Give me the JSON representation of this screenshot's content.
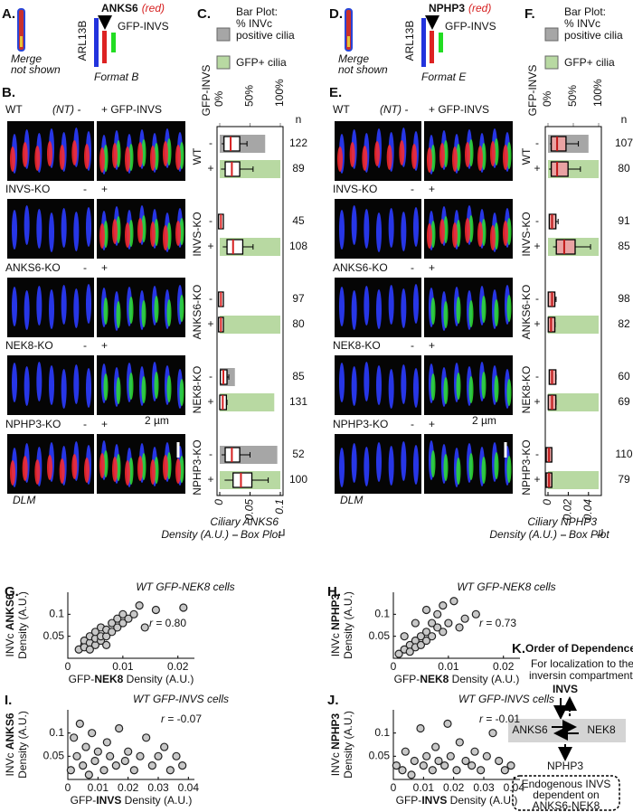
{
  "figure": {
    "A": {
      "label": "A.",
      "merge": "Merge",
      "not_shown": "not shown",
      "arl": "ARL13B",
      "protein": "ANKS6",
      "protein_note": "(red)",
      "gfp": "GFP-INVS",
      "format": "Format B"
    },
    "B": {
      "label": "B.",
      "rows": [
        "WT",
        "INVS-KO",
        "ANKS6-KO",
        "NEK8-KO",
        "NPHP3-KO"
      ],
      "header_minus": "(NT) -",
      "header_plus": "+ GFP-INVS",
      "minus": "-",
      "plus": "+",
      "scale": "2 µm",
      "method": "DLM"
    },
    "D": {
      "label": "D.",
      "merge": "Merge",
      "not_shown": "not shown",
      "arl": "ARL13B",
      "protein": "NPHP3",
      "protein_note": "(red)",
      "gfp": "GFP-INVS",
      "format": "Format E"
    },
    "E": {
      "label": "E.",
      "rows": [
        "WT",
        "INVS-KO",
        "ANKS6-KO",
        "NEK8-KO",
        "NPHP3-KO"
      ],
      "header_minus": "(NT) -",
      "header_plus": "+ GFP-INVS",
      "minus": "-",
      "plus": "+",
      "scale": "2 µm",
      "method": "DLM"
    },
    "K": {
      "label": "K.",
      "title": "Order of Dependence:",
      "subtitle": [
        "For localization to the",
        "inversin compartment."
      ],
      "top": "INVS",
      "left": "ANKS6",
      "right": "NEK8",
      "bottom": "NPHP3",
      "note": [
        "Endogenous INVS",
        "dependent on",
        "ANKS6-NEK8"
      ]
    }
  },
  "chart_data": [
    {
      "type": "box-bar",
      "panel_label": "C.",
      "legend": {
        "invc_label": [
          "Bar Plot:",
          "% INVc",
          "positive cilia"
        ],
        "invc_color": "#a6a6a6",
        "gfp_label": "GFP+ cilia",
        "gfp_color": "#b8d9a2"
      },
      "row_axis_label": "GFP-INVS",
      "n_header": "n",
      "toplim": [
        0,
        100
      ],
      "top_ticks": [
        {
          "value": 0,
          "label": "0%"
        },
        {
          "value": 50,
          "label": "50%"
        },
        {
          "value": 100,
          "label": "100%"
        }
      ],
      "xlim": [
        0,
        0.1
      ],
      "xticks": [
        0,
        0.05,
        0.1
      ],
      "xlabel": [
        "Ciliary ANKS6",
        "Density (A.U.)"
      ],
      "box_label": "Box Plot",
      "box_fill": "#ffffff",
      "median_color": "#d62020",
      "groups": [
        "WT",
        "INVS-KO",
        "ANKS6-KO",
        "NEK8-KO",
        "NPHP3-KO"
      ],
      "rows": [
        {
          "sign": "-",
          "kind": "invc",
          "bar": 75,
          "box": [
            0.003,
            0.01,
            0.018,
            0.03,
            0.045
          ],
          "n": 122
        },
        {
          "sign": "+",
          "kind": "gfp",
          "bar": 100,
          "box": [
            0.002,
            0.012,
            0.02,
            0.03,
            0.055
          ],
          "n": 89
        },
        {
          "sign": "-",
          "kind": "invc",
          "bar": 0,
          "box": [
            0,
            0.001,
            0.002,
            0.003,
            0.005
          ],
          "n": 45
        },
        {
          "sign": "+",
          "kind": "gfp",
          "bar": 100,
          "box": [
            0.005,
            0.015,
            0.022,
            0.035,
            0.055
          ],
          "n": 108
        },
        {
          "sign": "-",
          "kind": "invc",
          "bar": 0,
          "box": [
            0,
            0.001,
            0.002,
            0.003,
            0.006
          ],
          "n": 97
        },
        {
          "sign": "+",
          "kind": "gfp",
          "bar": 100,
          "box": [
            0,
            0.001,
            0.002,
            0.003,
            0.006
          ],
          "n": 80
        },
        {
          "sign": "-",
          "kind": "invc",
          "bar": 25,
          "box": [
            0,
            0.004,
            0.006,
            0.009,
            0.015
          ],
          "n": 85
        },
        {
          "sign": "+",
          "kind": "gfp",
          "bar": 90,
          "box": [
            0,
            0.003,
            0.005,
            0.008,
            0.012
          ],
          "n": 131
        },
        {
          "sign": "-",
          "kind": "invc",
          "bar": 95,
          "box": [
            0.003,
            0.012,
            0.02,
            0.03,
            0.05
          ],
          "n": 52
        },
        {
          "sign": "+",
          "kind": "gfp",
          "bar": 100,
          "box": [
            0.008,
            0.025,
            0.035,
            0.05,
            0.08
          ],
          "n": 100
        }
      ]
    },
    {
      "type": "box-bar",
      "panel_label": "F.",
      "legend": {
        "invc_label": [
          "Bar Plot:",
          "% INVc",
          "positive cilia"
        ],
        "invc_color": "#a6a6a6",
        "gfp_label": "GFP+ cilia",
        "gfp_color": "#b8d9a2"
      },
      "row_axis_label": "GFP-INVS",
      "n_header": "n",
      "toplim": [
        0,
        100
      ],
      "top_ticks": [
        {
          "value": 0,
          "label": "0%"
        },
        {
          "value": 50,
          "label": "50%"
        },
        {
          "value": 100,
          "label": "100%"
        }
      ],
      "xlim": [
        0,
        0.05
      ],
      "xticks": [
        0,
        0.02,
        0.04
      ],
      "xlabel": [
        "Ciliary NPHP3",
        "Density (A.U.)"
      ],
      "box_label": "Box Plot",
      "box_fill": "#e9a3a3",
      "median_color": "#c01818",
      "groups": [
        "WT",
        "INVS-KO",
        "ANKS6-KO",
        "NEK8-KO",
        "NPHP3-KO"
      ],
      "rows": [
        {
          "sign": "-",
          "kind": "invc",
          "bar": 80,
          "box": [
            0.002,
            0.005,
            0.009,
            0.016,
            0.03
          ],
          "n": 107
        },
        {
          "sign": "+",
          "kind": "gfp",
          "bar": 100,
          "box": [
            0.001,
            0.005,
            0.009,
            0.018,
            0.032
          ],
          "n": 80
        },
        {
          "sign": "-",
          "kind": "invc",
          "bar": 0,
          "box": [
            0.001,
            0.003,
            0.004,
            0.006,
            0.01
          ],
          "n": 91
        },
        {
          "sign": "+",
          "kind": "gfp",
          "bar": 100,
          "box": [
            0.005,
            0.01,
            0.016,
            0.025,
            0.042
          ],
          "n": 85
        },
        {
          "sign": "-",
          "kind": "invc",
          "bar": 0,
          "box": [
            0.001,
            0.002,
            0.004,
            0.005,
            0.008
          ],
          "n": 98
        },
        {
          "sign": "+",
          "kind": "gfp",
          "bar": 100,
          "box": [
            0.001,
            0.002,
            0.003,
            0.005,
            0.007
          ],
          "n": 82
        },
        {
          "sign": "-",
          "kind": "invc",
          "bar": 0,
          "box": [
            0.001,
            0.003,
            0.004,
            0.006,
            0.008
          ],
          "n": 60
        },
        {
          "sign": "+",
          "kind": "gfp",
          "bar": 100,
          "box": [
            0.001,
            0.002,
            0.004,
            0.006,
            0.008
          ],
          "n": 69
        },
        {
          "sign": "-",
          "kind": "invc",
          "bar": 0,
          "box": [
            0,
            0,
            0.001,
            0.002,
            0.003
          ],
          "n": 110
        },
        {
          "sign": "+",
          "kind": "gfp",
          "bar": 100,
          "box": [
            0,
            0,
            0.001,
            0.002,
            0.003
          ],
          "n": 79
        }
      ]
    },
    {
      "type": "scatter",
      "panel_label": "G.",
      "title": "WT GFP-NEK8 cells",
      "ylabel_parts": [
        "INVc ",
        "ANKS6"
      ],
      "ylabel_line2": "Density (A.U.)",
      "xlabel_parts": [
        "GFP-",
        "NEK8",
        " Density (A.U.)"
      ],
      "r_label": [
        "r",
        " = 0.80"
      ],
      "xlim": [
        0,
        0.023
      ],
      "xticks": [
        0,
        0.01,
        0.02
      ],
      "ylim": [
        0,
        0.15
      ],
      "yticks": [
        0.05,
        0.1
      ],
      "points": [
        [
          0.002,
          0.02
        ],
        [
          0.003,
          0.03
        ],
        [
          0.003,
          0.04
        ],
        [
          0.004,
          0.035
        ],
        [
          0.004,
          0.05
        ],
        [
          0.005,
          0.03
        ],
        [
          0.005,
          0.045
        ],
        [
          0.005,
          0.06
        ],
        [
          0.006,
          0.04
        ],
        [
          0.006,
          0.05
        ],
        [
          0.006,
          0.07
        ],
        [
          0.007,
          0.05
        ],
        [
          0.007,
          0.065
        ],
        [
          0.008,
          0.06
        ],
        [
          0.008,
          0.08
        ],
        [
          0.009,
          0.07
        ],
        [
          0.009,
          0.09
        ],
        [
          0.01,
          0.08
        ],
        [
          0.01,
          0.1
        ],
        [
          0.011,
          0.09
        ],
        [
          0.012,
          0.1
        ],
        [
          0.013,
          0.12
        ],
        [
          0.014,
          0.07
        ],
        [
          0.016,
          0.11
        ],
        [
          0.021,
          0.115
        ],
        [
          0.003,
          0.025
        ],
        [
          0.004,
          0.02
        ],
        [
          0.007,
          0.03
        ]
      ]
    },
    {
      "type": "scatter",
      "panel_label": "H.",
      "title": "WT GFP-NEK8 cells",
      "ylabel_parts": [
        "INVc ",
        "NPHP3"
      ],
      "ylabel_line2": "Density (A.U.)",
      "xlabel_parts": [
        "GFP-",
        "NEK8",
        " Density (A.U.)"
      ],
      "r_label": [
        "r",
        " = 0.73"
      ],
      "xlim": [
        0,
        0.023
      ],
      "xticks": [
        0,
        0.01,
        0.02
      ],
      "ylim": [
        0,
        0.15
      ],
      "yticks": [
        0.05,
        0.1
      ],
      "points": [
        [
          0.001,
          0.01
        ],
        [
          0.002,
          0.02
        ],
        [
          0.003,
          0.03
        ],
        [
          0.003,
          0.015
        ],
        [
          0.004,
          0.04
        ],
        [
          0.004,
          0.025
        ],
        [
          0.005,
          0.05
        ],
        [
          0.005,
          0.03
        ],
        [
          0.006,
          0.06
        ],
        [
          0.006,
          0.04
        ],
        [
          0.007,
          0.08
        ],
        [
          0.007,
          0.05
        ],
        [
          0.008,
          0.07
        ],
        [
          0.008,
          0.1
        ],
        [
          0.009,
          0.06
        ],
        [
          0.009,
          0.12
        ],
        [
          0.01,
          0.08
        ],
        [
          0.011,
          0.13
        ],
        [
          0.012,
          0.07
        ],
        [
          0.013,
          0.09
        ],
        [
          0.015,
          0.1
        ],
        [
          0.002,
          0.05
        ],
        [
          0.004,
          0.08
        ],
        [
          0.006,
          0.11
        ]
      ]
    },
    {
      "type": "scatter",
      "panel_label": "I.",
      "title": "WT GFP-INVS cells",
      "ylabel_parts": [
        "INVc ",
        "ANKS6"
      ],
      "ylabel_line2": "Density (A.U.)",
      "xlabel_parts": [
        "GFP-",
        "INVS",
        " Density (A.U.)"
      ],
      "r_label": [
        "r",
        " = -0.07"
      ],
      "xlim": [
        0,
        0.042
      ],
      "xticks": [
        0,
        0.01,
        0.02,
        0.03,
        0.04
      ],
      "ylim": [
        0,
        0.15
      ],
      "yticks": [
        0.05,
        0.1
      ],
      "points": [
        [
          0.001,
          0.02
        ],
        [
          0.002,
          0.09
        ],
        [
          0.003,
          0.05
        ],
        [
          0.004,
          0.12
        ],
        [
          0.005,
          0.03
        ],
        [
          0.006,
          0.07
        ],
        [
          0.007,
          0.01
        ],
        [
          0.008,
          0.1
        ],
        [
          0.009,
          0.04
        ],
        [
          0.01,
          0.06
        ],
        [
          0.012,
          0.02
        ],
        [
          0.013,
          0.08
        ],
        [
          0.014,
          0.05
        ],
        [
          0.016,
          0.03
        ],
        [
          0.017,
          0.11
        ],
        [
          0.019,
          0.04
        ],
        [
          0.02,
          0.06
        ],
        [
          0.022,
          0.02
        ],
        [
          0.024,
          0.05
        ],
        [
          0.026,
          0.09
        ],
        [
          0.028,
          0.03
        ],
        [
          0.03,
          0.05
        ],
        [
          0.032,
          0.07
        ],
        [
          0.034,
          0.02
        ],
        [
          0.036,
          0.05
        ],
        [
          0.038,
          0.03
        ]
      ]
    },
    {
      "type": "scatter",
      "panel_label": "J.",
      "title": "WT GFP-INVS cells",
      "ylabel_parts": [
        "INVc ",
        "NPHP3"
      ],
      "ylabel_line2": "Density (A.U.)",
      "xlabel_parts": [
        "GFP-",
        "INVS",
        " Density (A.U.)"
      ],
      "r_label": [
        "r",
        " = -0.01"
      ],
      "xlim": [
        0,
        0.042
      ],
      "xticks": [
        0,
        0.01,
        0.02,
        0.03,
        0.04
      ],
      "ylim": [
        0,
        0.15
      ],
      "yticks": [
        0.05,
        0.1
      ],
      "points": [
        [
          0.001,
          0.03
        ],
        [
          0.003,
          0.02
        ],
        [
          0.004,
          0.06
        ],
        [
          0.006,
          0.01
        ],
        [
          0.007,
          0.04
        ],
        [
          0.009,
          0.11
        ],
        [
          0.01,
          0.03
        ],
        [
          0.011,
          0.05
        ],
        [
          0.013,
          0.02
        ],
        [
          0.014,
          0.07
        ],
        [
          0.015,
          0.04
        ],
        [
          0.017,
          0.03
        ],
        [
          0.018,
          0.12
        ],
        [
          0.019,
          0.05
        ],
        [
          0.021,
          0.02
        ],
        [
          0.022,
          0.08
        ],
        [
          0.024,
          0.04
        ],
        [
          0.026,
          0.03
        ],
        [
          0.027,
          0.06
        ],
        [
          0.029,
          0.02
        ],
        [
          0.031,
          0.05
        ],
        [
          0.033,
          0.1
        ],
        [
          0.035,
          0.04
        ],
        [
          0.037,
          0.02
        ],
        [
          0.039,
          0.03
        ]
      ]
    }
  ]
}
